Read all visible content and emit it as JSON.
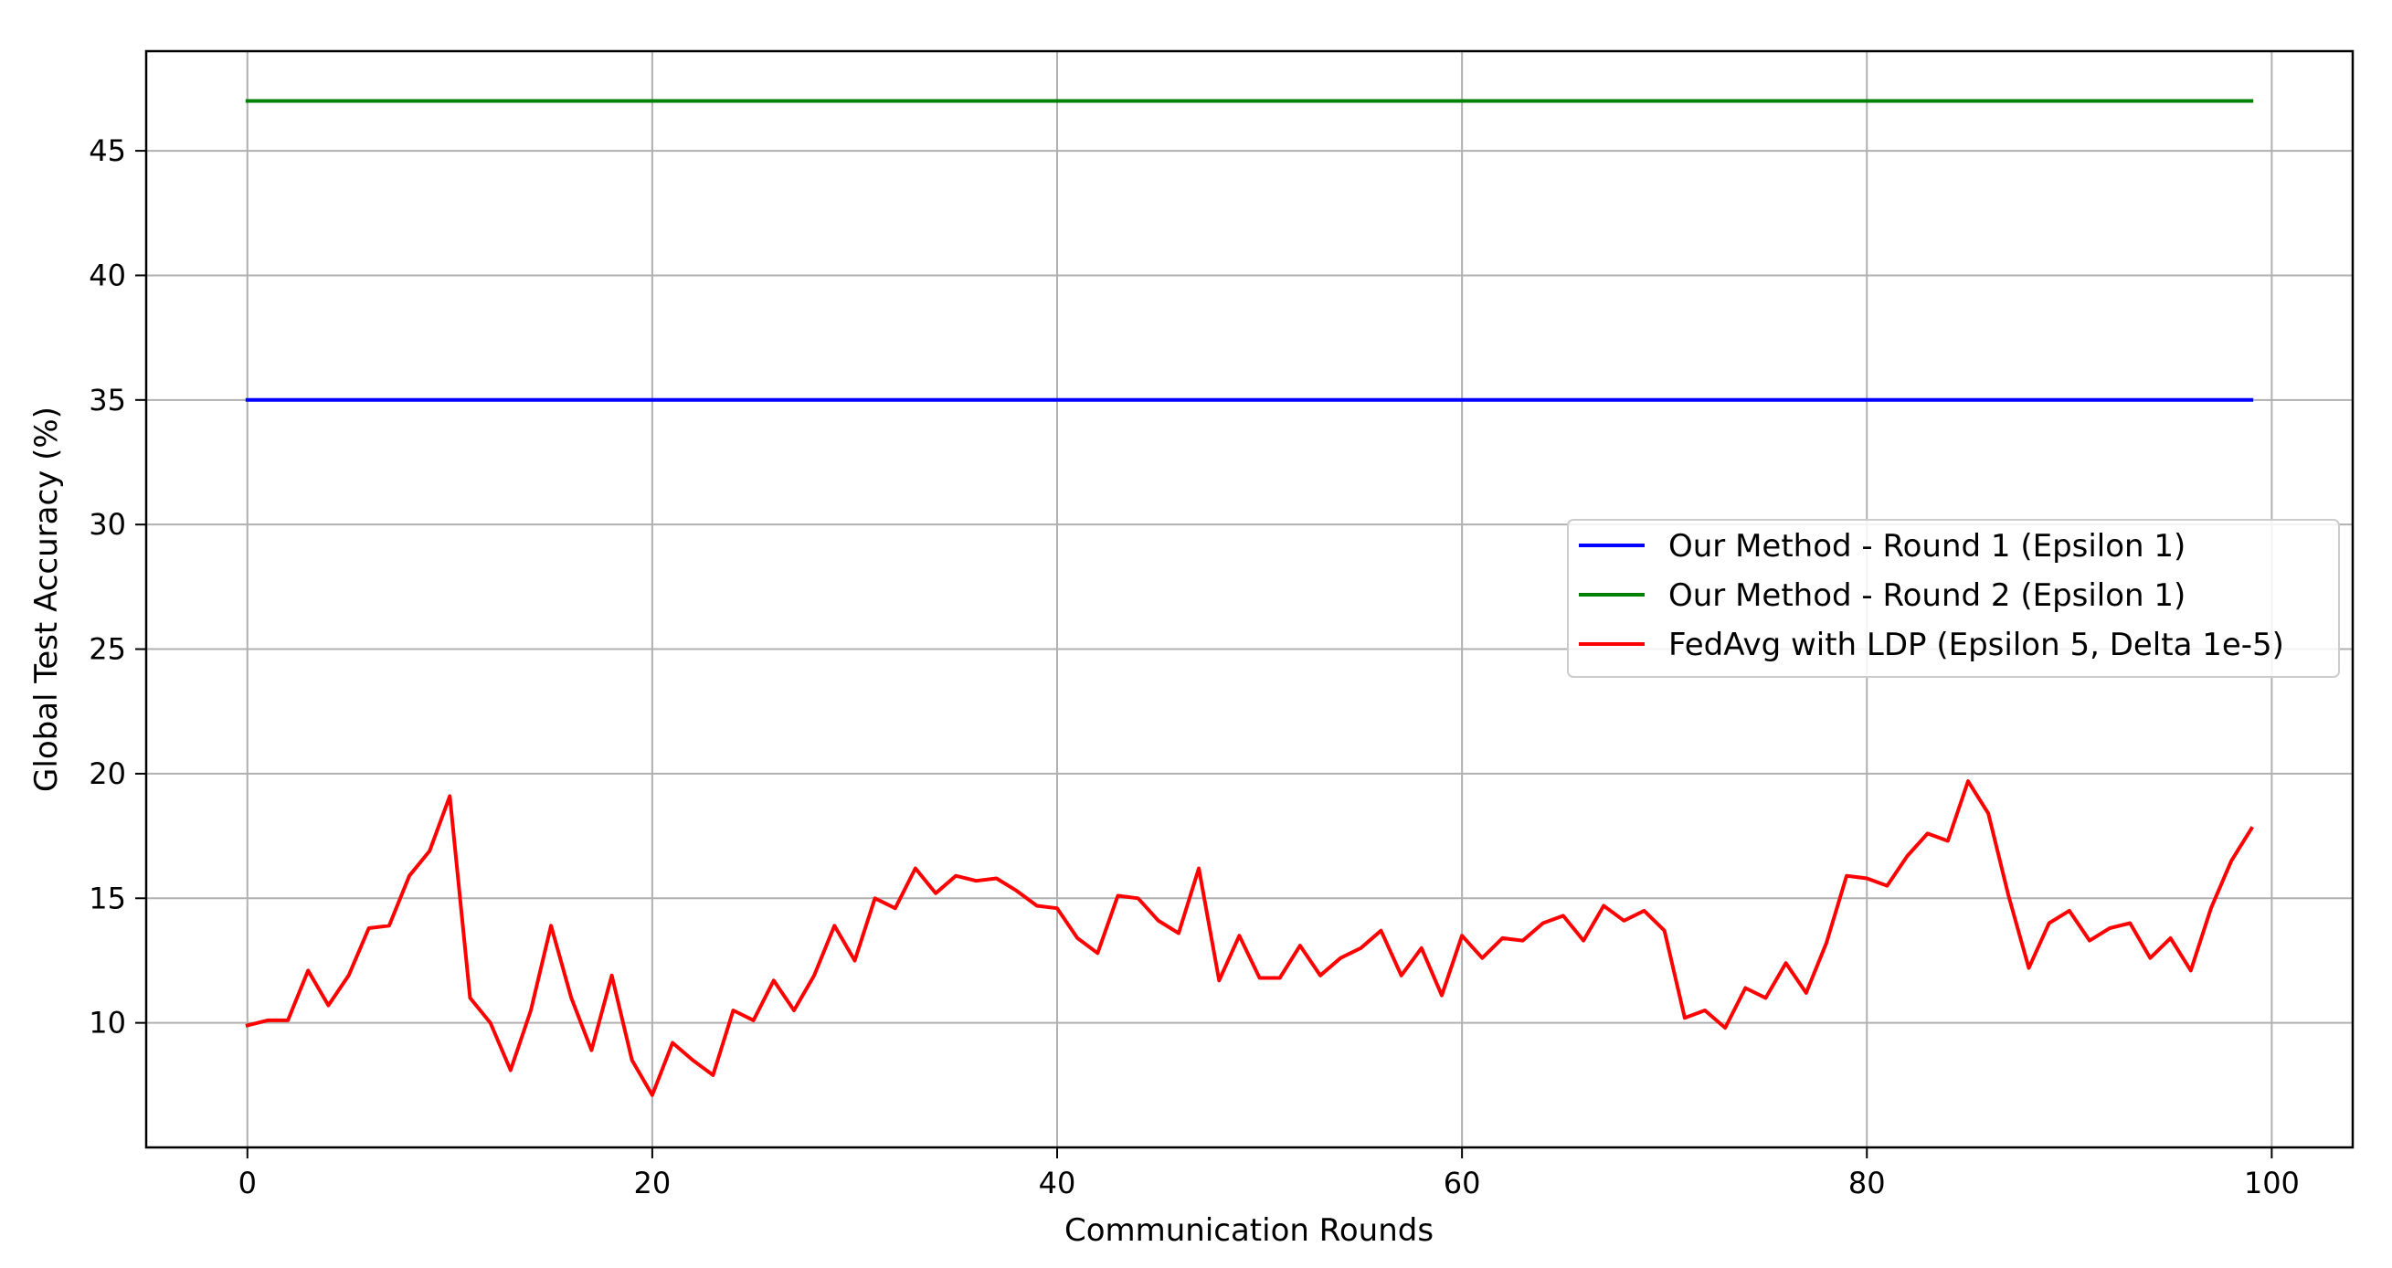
{
  "chart_data": {
    "type": "line",
    "title": "",
    "xlabel": "Communication Rounds",
    "ylabel": "Global Test Accuracy (%)",
    "xlim": [
      -5,
      104
    ],
    "ylim": [
      5,
      49
    ],
    "xticks": [
      0,
      20,
      40,
      60,
      80,
      100
    ],
    "yticks": [
      10,
      15,
      20,
      25,
      30,
      35,
      40,
      45
    ],
    "grid": true,
    "legend_position": "center-right",
    "series": [
      {
        "name": "Our Method - Round 1 (Epsilon 1)",
        "color": "#0000ff",
        "x": [
          0,
          99
        ],
        "y": [
          35.0,
          35.0
        ]
      },
      {
        "name": "Our Method - Round 2 (Epsilon 1)",
        "color": "#008000",
        "x": [
          0,
          99
        ],
        "y": [
          47.0,
          47.0
        ]
      },
      {
        "name": "FedAvg with LDP (Epsilon 5, Delta 1e-5)",
        "color": "#ff0000",
        "x": [
          0,
          1,
          2,
          3,
          4,
          5,
          6,
          7,
          8,
          9,
          10,
          11,
          12,
          13,
          14,
          15,
          16,
          17,
          18,
          19,
          20,
          21,
          22,
          23,
          24,
          25,
          26,
          27,
          28,
          29,
          30,
          31,
          32,
          33,
          34,
          35,
          36,
          37,
          38,
          39,
          40,
          41,
          42,
          43,
          44,
          45,
          46,
          47,
          48,
          49,
          50,
          51,
          52,
          53,
          54,
          55,
          56,
          57,
          58,
          59,
          60,
          61,
          62,
          63,
          64,
          65,
          66,
          67,
          68,
          69,
          70,
          71,
          72,
          73,
          74,
          75,
          76,
          77,
          78,
          79,
          80,
          81,
          82,
          83,
          84,
          85,
          86,
          87,
          88,
          89,
          90,
          91,
          92,
          93,
          94,
          95,
          96,
          97,
          98,
          99
        ],
        "y": [
          9.9,
          10.1,
          10.1,
          12.1,
          10.7,
          11.9,
          13.8,
          13.9,
          15.9,
          16.9,
          19.1,
          11.0,
          10.0,
          8.1,
          10.5,
          13.9,
          11.0,
          8.9,
          11.9,
          8.5,
          7.1,
          9.2,
          8.5,
          7.9,
          10.5,
          10.1,
          11.7,
          10.5,
          11.9,
          13.9,
          12.5,
          15.0,
          14.6,
          16.2,
          15.2,
          15.9,
          15.7,
          15.8,
          15.3,
          14.7,
          14.6,
          13.4,
          12.8,
          15.1,
          15.0,
          14.1,
          13.6,
          16.2,
          11.7,
          13.5,
          11.8,
          11.8,
          13.1,
          11.9,
          12.6,
          13.0,
          13.7,
          11.9,
          13.0,
          11.1,
          13.5,
          12.6,
          13.4,
          13.3,
          14.0,
          14.3,
          13.3,
          14.7,
          14.1,
          14.5,
          13.7,
          10.2,
          10.5,
          9.8,
          11.4,
          11.0,
          12.4,
          11.2,
          13.2,
          15.9,
          15.8,
          15.5,
          16.7,
          17.6,
          17.3,
          19.7,
          18.4,
          15.1,
          12.2,
          14.0,
          14.5,
          13.3,
          13.8,
          14.0,
          12.6,
          13.4,
          12.1,
          14.6,
          16.5,
          17.8
        ]
      }
    ]
  }
}
